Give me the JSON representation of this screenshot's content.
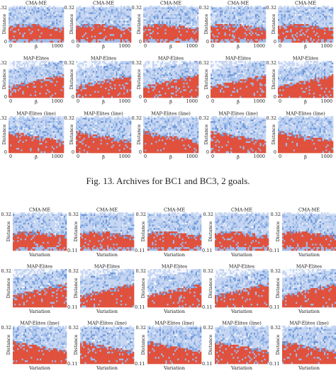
{
  "caption": "Fig. 13.  Archives for BC1 and BC3, 2 goals.",
  "colors": {
    "red": "#e0513d",
    "blue_light": "#c6d6f2",
    "blue_mid": "#9dbbea",
    "blue_dark": "#6d97d8"
  },
  "chart_data": [
    {
      "type": "heatmap",
      "id": "BC1",
      "panel_titles": [
        "CMA-ME",
        "MAP-Elites",
        "MAP-Elites (line)"
      ],
      "xlabel": "β",
      "ylabel": "Distance",
      "x_ticks": [
        "0",
        "1000"
      ],
      "y_top_tick": "0.32",
      "y_bottom_tick": "0",
      "xlim": [
        0,
        1000
      ],
      "ylim": [
        0,
        0.32
      ],
      "rows": 3,
      "cols": 5,
      "x_label_cols": [
        0
      ],
      "y_label_cols": [
        0
      ]
    },
    {
      "type": "heatmap",
      "id": "BC3",
      "panel_titles": [
        "CMA-ME",
        "MAP-Elites",
        "MAP-Elites (line)"
      ],
      "xlabel": "Variation",
      "ylabel": "Distance",
      "x_end_tick": "0.11",
      "y_top_tick": "0.32",
      "xlim": [
        0,
        0.11
      ],
      "ylim": [
        0,
        0.32
      ],
      "rows": 3,
      "cols": 5
    }
  ]
}
